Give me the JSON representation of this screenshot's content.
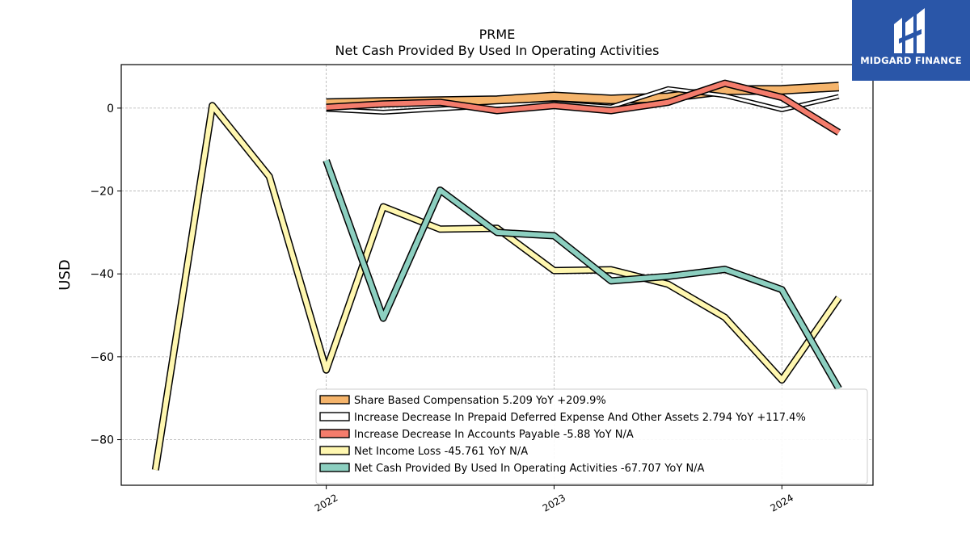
{
  "chart_data": {
    "type": "line",
    "title": "PRME",
    "subtitle": "Net Cash Provided By Used In Operating Activities",
    "ylabel": "USD",
    "xlabel": "",
    "ylim": [
      -91,
      10.5
    ],
    "xlim": [
      2021.1,
      2024.4
    ],
    "yticks": [
      0,
      -20,
      -40,
      -60,
      -80
    ],
    "ytick_labels": [
      "0",
      "−20",
      "−40",
      "−60",
      "−80"
    ],
    "xticks": [
      2022,
      2023,
      2024
    ],
    "xtick_labels": [
      "2022",
      "2023",
      "2024"
    ],
    "grid": true,
    "legend_position": "lower-right",
    "series": [
      {
        "name": "Share Based Compensation",
        "legend_label": "Share Based Compensation  5.209 YoY +209.9%",
        "color": "#f5b46b",
        "width": 9,
        "x": [
          2022.0,
          2022.25,
          2022.5,
          2022.75,
          2023.0,
          2023.25,
          2023.5,
          2023.75,
          2024.0,
          2024.25
        ],
        "y": [
          1.2,
          1.5,
          1.7,
          1.9,
          2.8,
          2.1,
          2.6,
          4.3,
          4.4,
          5.2
        ]
      },
      {
        "name": "Increase Decrease In Prepaid Deferred Expense And Other Assets",
        "legend_label": "Increase Decrease In Prepaid Deferred Expense And Other Assets  2.794 YoY +117.4%",
        "color": "#ffffff",
        "width": 3,
        "x": [
          2022.0,
          2022.25,
          2022.5,
          2022.75,
          2023.0,
          2023.25,
          2023.5,
          2023.75,
          2024.0,
          2024.25
        ],
        "y": [
          -0.3,
          -1.0,
          -0.2,
          0.6,
          1.2,
          0.3,
          4.7,
          3.0,
          -0.4,
          2.8
        ]
      },
      {
        "name": "Increase Decrease In Accounts Payable",
        "legend_label": "Increase Decrease In Accounts Payable  -5.88 YoY N/A",
        "color": "#f47c6c",
        "width": 6,
        "x": [
          2022.0,
          2022.25,
          2022.5,
          2022.75,
          2023.0,
          2023.25,
          2023.5,
          2023.75,
          2024.0,
          2024.25
        ],
        "y": [
          0.2,
          1.0,
          1.4,
          -0.6,
          0.6,
          -0.6,
          1.4,
          6.0,
          2.6,
          -5.88
        ]
      },
      {
        "name": "Net Income Loss",
        "legend_label": "Net Income Loss  -45.761 YoY N/A",
        "color": "#fff7b0",
        "width": 6,
        "x": [
          2021.25,
          2021.5,
          2021.75,
          2022.0,
          2022.25,
          2022.5,
          2022.75,
          2023.0,
          2023.25,
          2023.5,
          2023.75,
          2024.0,
          2024.25
        ],
        "y": [
          -87.3,
          0.6,
          -16.5,
          -63.2,
          -23.8,
          -29.2,
          -29.0,
          -39.2,
          -39.0,
          -42.5,
          -50.5,
          -65.6,
          -45.761
        ]
      },
      {
        "name": "Net Cash Provided By Used In Operating Activities",
        "legend_label": "Net Cash Provided By Used In Operating Activities  -67.707 YoY N/A",
        "color": "#8ccfc0",
        "width": 6,
        "x": [
          2022.0,
          2022.25,
          2022.5,
          2022.75,
          2023.0,
          2023.25,
          2023.5,
          2023.75,
          2024.0,
          2024.25
        ],
        "y": [
          -12.6,
          -50.7,
          -19.8,
          -30.0,
          -30.8,
          -41.7,
          -40.6,
          -38.9,
          -43.8,
          -67.707
        ]
      }
    ]
  },
  "logo": {
    "text": "MIDGARD FINANCE"
  }
}
